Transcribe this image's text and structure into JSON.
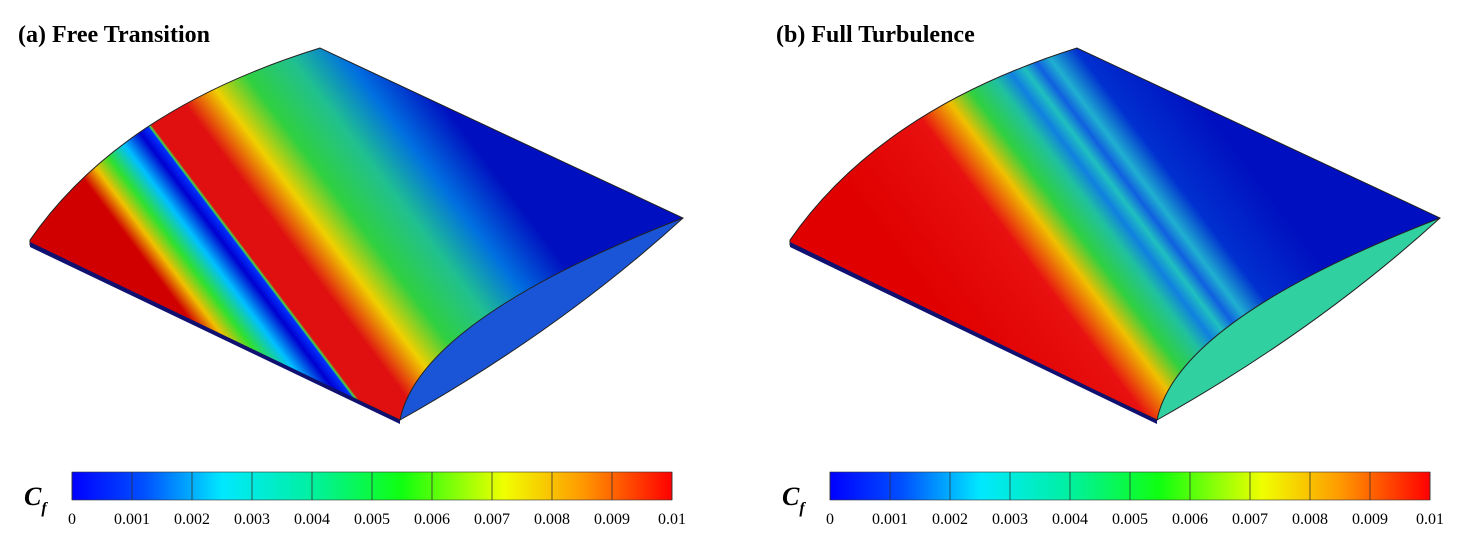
{
  "panels": [
    {
      "title": "(a) Free Transition",
      "colorbar": {
        "label": "C",
        "label_subscript": "f",
        "lim": [
          0,
          0.01
        ],
        "ticks": [
          0,
          0.001,
          0.002,
          0.003,
          0.004,
          0.005,
          0.006,
          0.007,
          0.008,
          0.009,
          0.01
        ]
      }
    },
    {
      "title": "(b) Full Turbulence",
      "colorbar": {
        "label": "C",
        "label_subscript": "f",
        "lim": [
          0,
          0.01
        ],
        "ticks": [
          0,
          0.001,
          0.002,
          0.003,
          0.004,
          0.005,
          0.006,
          0.007,
          0.008,
          0.009,
          0.01
        ]
      }
    }
  ]
}
